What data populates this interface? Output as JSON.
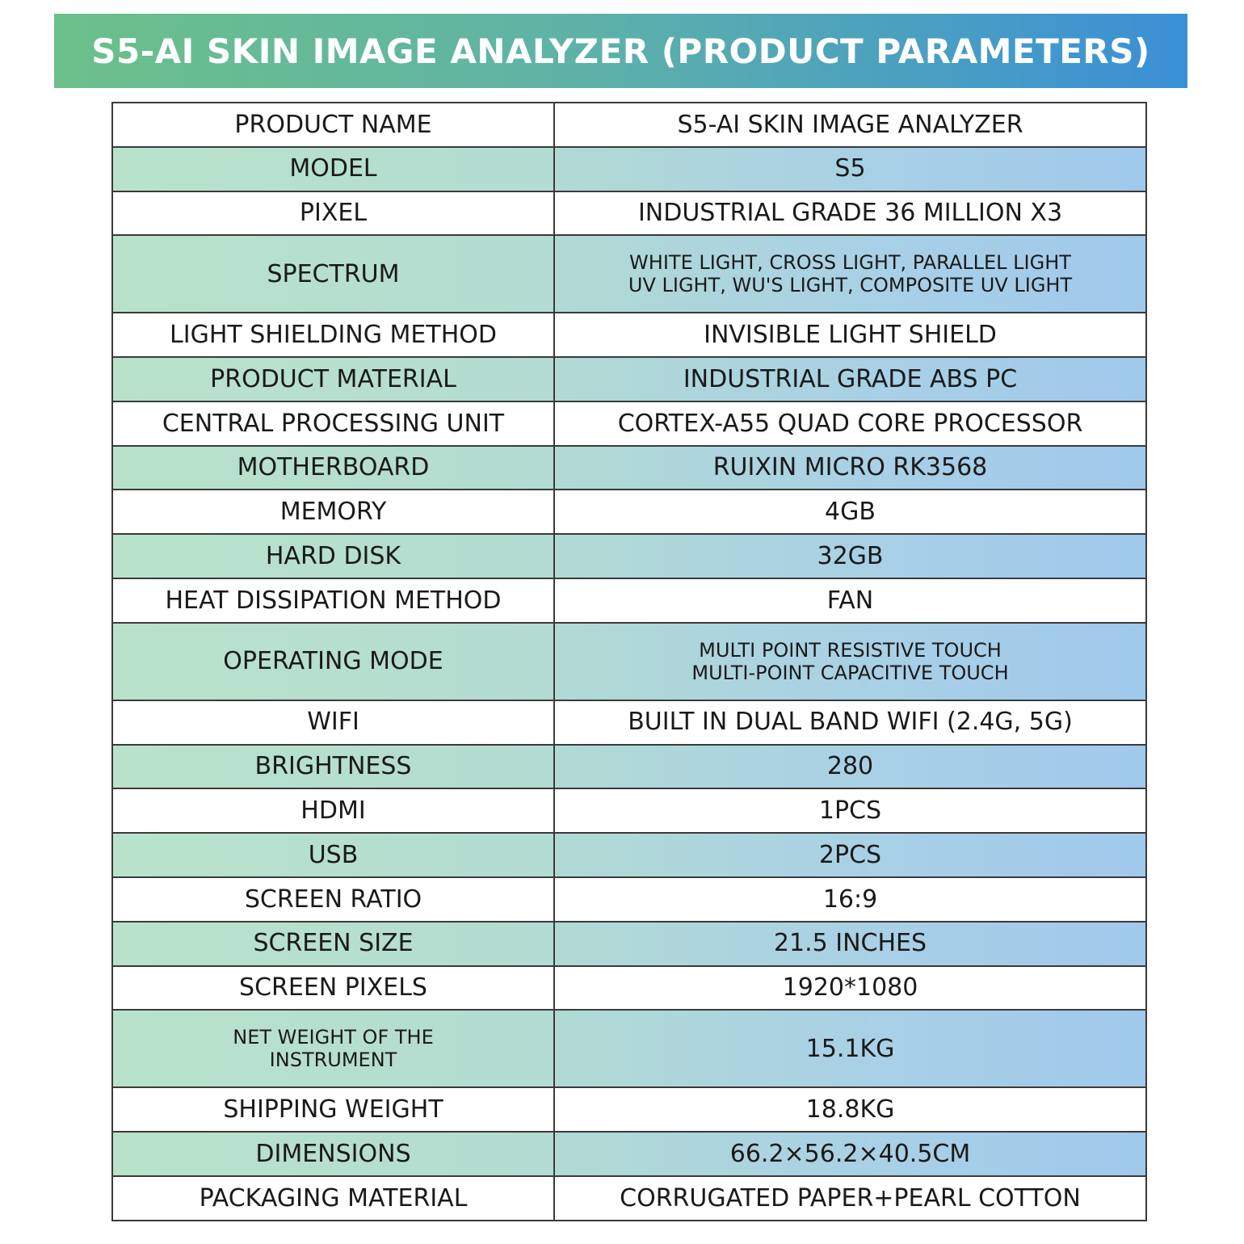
{
  "banner": {
    "title": "S5-AI SKIN IMAGE ANALYZER (PRODUCT PARAMETERS)"
  },
  "rows": [
    {
      "key": [
        "PRODUCT NAME"
      ],
      "value": [
        "S5-AI SKIN IMAGE ANALYZER"
      ]
    },
    {
      "key": [
        "MODEL"
      ],
      "value": [
        "S5"
      ]
    },
    {
      "key": [
        "PIXEL"
      ],
      "value": [
        "INDUSTRIAL GRADE 36 MILLION X3"
      ]
    },
    {
      "key": [
        "SPECTRUM"
      ],
      "value": [
        "WHITE LIGHT, CROSS LIGHT, PARALLEL LIGHT",
        "UV LIGHT, WU'S LIGHT, COMPOSITE UV LIGHT"
      ]
    },
    {
      "key": [
        "LIGHT SHIELDING METHOD"
      ],
      "value": [
        "INVISIBLE LIGHT SHIELD"
      ]
    },
    {
      "key": [
        "PRODUCT MATERIAL"
      ],
      "value": [
        "INDUSTRIAL GRADE ABS PC"
      ]
    },
    {
      "key": [
        "CENTRAL PROCESSING UNIT"
      ],
      "value": [
        "CORTEX-A55 QUAD CORE PROCESSOR"
      ]
    },
    {
      "key": [
        "MOTHERBOARD"
      ],
      "value": [
        "RUIXIN MICRO RK3568"
      ]
    },
    {
      "key": [
        "MEMORY"
      ],
      "value": [
        "4GB"
      ]
    },
    {
      "key": [
        "HARD DISK"
      ],
      "value": [
        "32GB"
      ]
    },
    {
      "key": [
        "HEAT DISSIPATION METHOD"
      ],
      "value": [
        "FAN"
      ]
    },
    {
      "key": [
        "OPERATING MODE"
      ],
      "value": [
        "MULTI POINT RESISTIVE TOUCH",
        "MULTI-POINT CAPACITIVE TOUCH"
      ]
    },
    {
      "key": [
        "WIFI"
      ],
      "value": [
        "BUILT IN DUAL BAND WIFI (2.4G, 5G)"
      ]
    },
    {
      "key": [
        "BRIGHTNESS"
      ],
      "value": [
        "280"
      ]
    },
    {
      "key": [
        "HDMI"
      ],
      "value": [
        "1PCS"
      ]
    },
    {
      "key": [
        "USB"
      ],
      "value": [
        "2PCS"
      ]
    },
    {
      "key": [
        "SCREEN RATIO"
      ],
      "value": [
        "16:9"
      ]
    },
    {
      "key": [
        "SCREEN SIZE"
      ],
      "value": [
        "21.5 INCHES"
      ]
    },
    {
      "key": [
        "SCREEN PIXELS"
      ],
      "value": [
        "1920*1080"
      ]
    },
    {
      "key": [
        "NET WEIGHT OF THE",
        "INSTRUMENT"
      ],
      "value": [
        "15.1KG"
      ]
    },
    {
      "key": [
        "SHIPPING WEIGHT"
      ],
      "value": [
        "18.8KG"
      ]
    },
    {
      "key": [
        "DIMENSIONS"
      ],
      "value": [
        "66.2×56.2×40.5CM"
      ]
    },
    {
      "key": [
        "PACKAGING MATERIAL"
      ],
      "value": [
        "CORRUGATED PAPER+PEARL COTTON"
      ]
    }
  ]
}
